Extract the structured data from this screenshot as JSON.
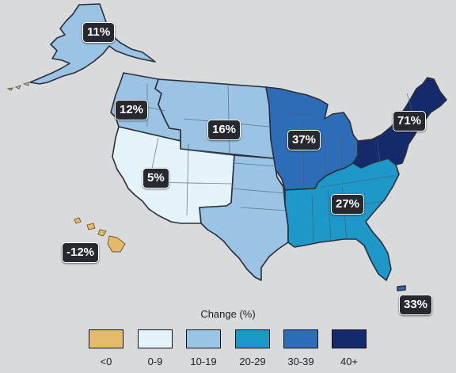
{
  "map": {
    "regions": [
      {
        "id": "alaska",
        "label": "11%",
        "fill": "#9bc3e3"
      },
      {
        "id": "northwest",
        "label": "12%",
        "fill": "#9bc3e3"
      },
      {
        "id": "great-plains-north",
        "label": "16%",
        "fill": "#9bc3e3"
      },
      {
        "id": "southwest",
        "label": "5%",
        "fill": "#e5f3fa"
      },
      {
        "id": "hawaii",
        "label": "-12%",
        "fill": "#e3bb6a"
      },
      {
        "id": "great-plains-south",
        "label": "",
        "fill": "#9bc3e3"
      },
      {
        "id": "midwest",
        "label": "37%",
        "fill": "#2d6db8"
      },
      {
        "id": "southeast",
        "label": "27%",
        "fill": "#1e98c9"
      },
      {
        "id": "northeast",
        "label": "71%",
        "fill": "#142a6b"
      },
      {
        "id": "puerto-rico",
        "label": "33%",
        "fill": "#2d6db8"
      }
    ]
  },
  "legend": {
    "title": "Change (%)",
    "items": [
      {
        "label": "<0",
        "color": "#e3bb6a"
      },
      {
        "label": "0-9",
        "color": "#e5f3fa"
      },
      {
        "label": "10-19",
        "color": "#9bc3e3"
      },
      {
        "label": "20-29",
        "color": "#1e98c9"
      },
      {
        "label": "30-39",
        "color": "#2d6db8"
      },
      {
        "label": "40+",
        "color": "#142a6b"
      }
    ]
  }
}
